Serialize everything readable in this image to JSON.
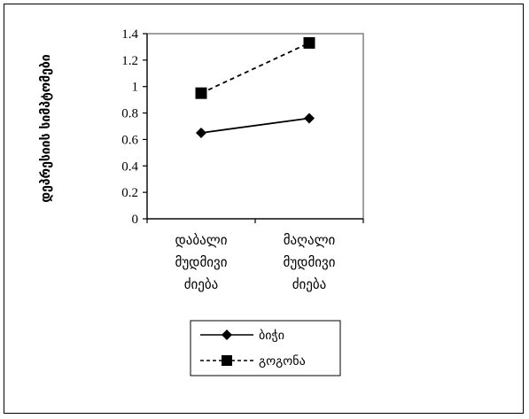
{
  "chart_data": {
    "type": "line",
    "categories": [
      "დაბალი მუდმივი ძიება",
      "მაღალი მუდმივი ძიება"
    ],
    "category_lines": [
      [
        "დაბალი",
        "მუდმივი",
        "ძიება"
      ],
      [
        "მაღალი",
        "მუდმივი",
        "ძიება"
      ]
    ],
    "series": [
      {
        "name": "ბიჭი",
        "values": [
          0.65,
          0.76
        ],
        "marker": "diamond",
        "line": "solid"
      },
      {
        "name": "გოგონა",
        "values": [
          0.95,
          1.33
        ],
        "marker": "square",
        "line": "dashed"
      }
    ],
    "ylabel": "დეპრესიის სიმპტომები",
    "ylim": [
      0,
      1.4
    ],
    "yticks": [
      "0",
      "0.2",
      "0.4",
      "0.6",
      "0.8",
      "1",
      "1.2",
      "1.4"
    ],
    "grid": false,
    "legend_position": "bottom",
    "colors": {
      "line": "#000000",
      "plot_border": "#808080"
    }
  }
}
